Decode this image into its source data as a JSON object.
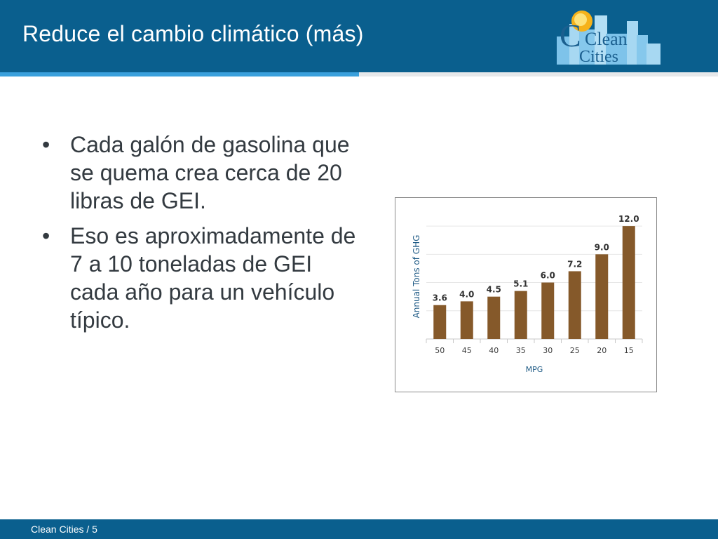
{
  "header": {
    "title": "Reduce el cambio climático (más)",
    "logo": {
      "line1": "Clean",
      "line2": "Cities"
    }
  },
  "bullets": [
    {
      "marker": "•",
      "text": "Cada galón de gasolina que se quema crea cerca de 20 libras de GEI."
    },
    {
      "marker": "•",
      "text": "Eso es aproximadamente de 7 a 10 toneladas de GEI cada año para un vehículo típico."
    }
  ],
  "chart_data": {
    "type": "bar",
    "categories": [
      "50",
      "45",
      "40",
      "35",
      "30",
      "25",
      "20",
      "15"
    ],
    "values": [
      3.6,
      4.0,
      4.5,
      5.1,
      6.0,
      7.2,
      9.0,
      12.0
    ],
    "value_labels": [
      "3.6",
      "4.0",
      "4.5",
      "5.1",
      "6.0",
      "7.2",
      "9.0",
      "12.0"
    ],
    "title": "",
    "xlabel": "MPG",
    "ylabel": "Annual Tons of GHG",
    "ylim": [
      0,
      13.5
    ],
    "grid": true,
    "legend": "none",
    "bar_color": "#85592a"
  },
  "footer": {
    "text": "Clean Cities  /  5"
  },
  "colors": {
    "header": "#0a5f8e",
    "accent": "#3aa0dc",
    "bar": "#85592a",
    "body_text": "#333a40"
  }
}
